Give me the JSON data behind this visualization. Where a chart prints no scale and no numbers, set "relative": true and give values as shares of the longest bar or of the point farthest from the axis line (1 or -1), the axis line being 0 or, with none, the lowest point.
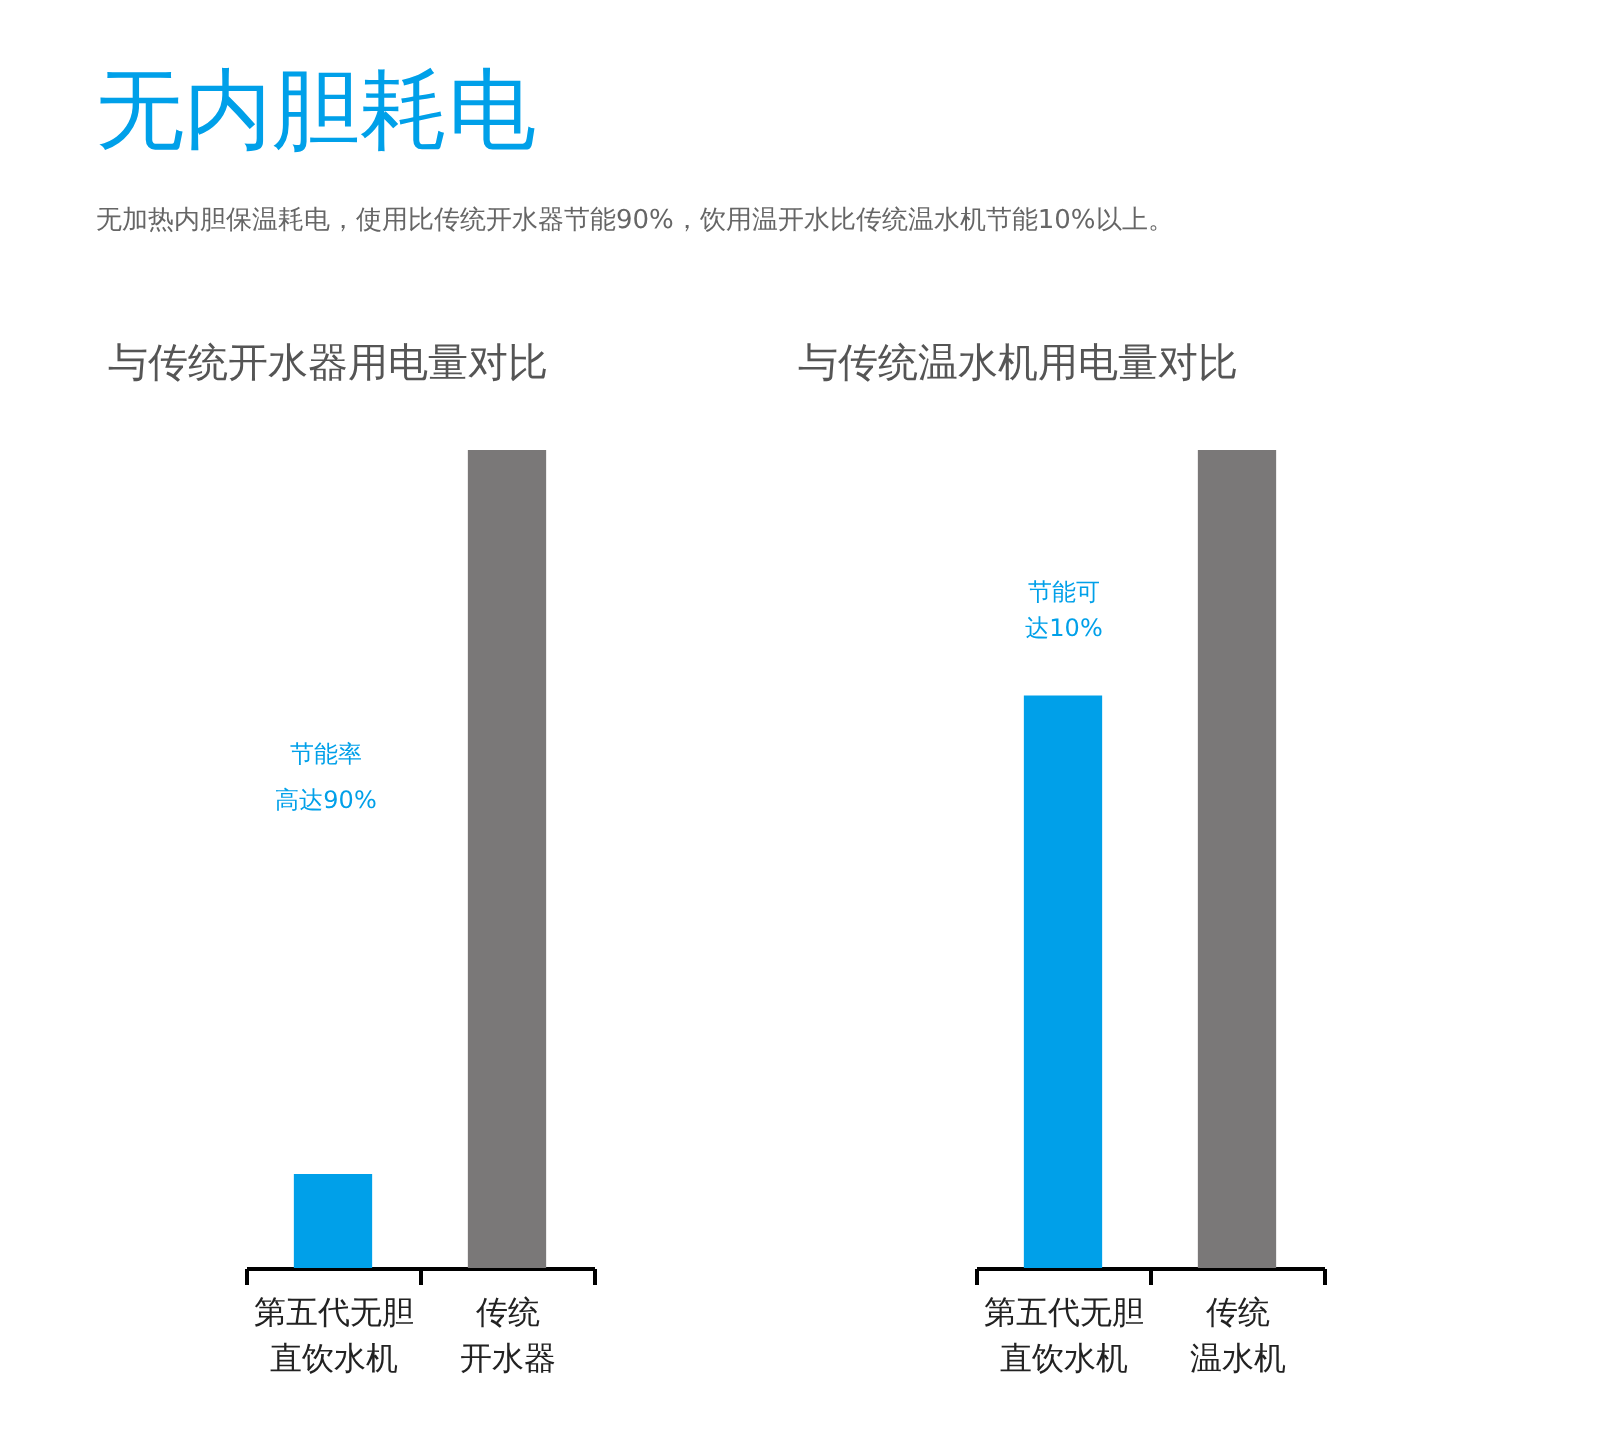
{
  "chart_data": [
    {
      "type": "other",
      "title": "无内胆耗电",
      "subtitle": "无加热内胆保温耗电，使用比传统开水器节能90%，饮用温开水比传统温水机节能10%以上。"
    },
    {
      "type": "bar",
      "title": "与传统开水器用电量对比",
      "categories": [
        "第五代无胆直饮水机",
        "传统开水器"
      ],
      "values": [
        0.115,
        1
      ],
      "colors": [
        "#00a0e9",
        "#7a7878"
      ],
      "relative": true,
      "annotations": [
        "节能率高达90%"
      ]
    },
    {
      "type": "bar",
      "title": "与传统温水机用电量对比",
      "categories": [
        "第五代无胆直饮水机",
        "传统温水机"
      ],
      "values": [
        0.7,
        1
      ],
      "colors": [
        "#00a0e9",
        "#7a7878"
      ],
      "relative": true,
      "annotations": [
        "节能可达10%"
      ]
    }
  ]
}
